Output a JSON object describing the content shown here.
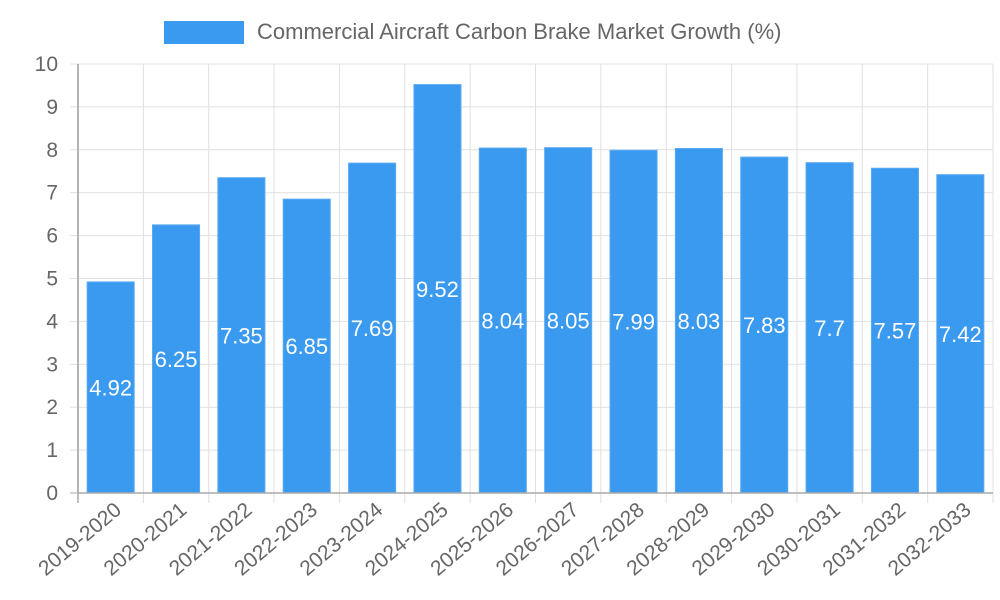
{
  "colors": {
    "bar": "#3a9aef",
    "bar_border": "#5aaaf0",
    "grid": "#e0e0e0",
    "axis": "#aaaaaa",
    "tick_text": "#666666",
    "value_label": "#ffffff"
  },
  "legend": {
    "label": "Commercial Aircraft Carbon Brake Market Growth (%)"
  },
  "chart_data": {
    "type": "bar",
    "title": "",
    "xlabel": "",
    "ylabel": "",
    "ylim": [
      0,
      10
    ],
    "yticks": [
      0,
      1,
      2,
      3,
      4,
      5,
      6,
      7,
      8,
      9,
      10
    ],
    "grid": true,
    "legend_position": "top",
    "categories": [
      "2019-2020",
      "2020-2021",
      "2021-2022",
      "2022-2023",
      "2023-2024",
      "2024-2025",
      "2025-2026",
      "2026-2027",
      "2027-2028",
      "2028-2029",
      "2029-2030",
      "2030-2031",
      "2031-2032",
      "2032-2033"
    ],
    "series": [
      {
        "name": "Commercial Aircraft Carbon Brake Market Growth (%)",
        "values": [
          4.92,
          6.25,
          7.35,
          6.85,
          7.69,
          9.52,
          8.04,
          8.05,
          7.99,
          8.03,
          7.83,
          7.7,
          7.57,
          7.42
        ],
        "labels": [
          "4.92",
          "6.25",
          "7.35",
          "6.85",
          "7.69",
          "9.52",
          "8.04",
          "8.05",
          "7.99",
          "8.03",
          "7.83",
          "7.7",
          "7.57",
          "7.42"
        ]
      }
    ]
  }
}
